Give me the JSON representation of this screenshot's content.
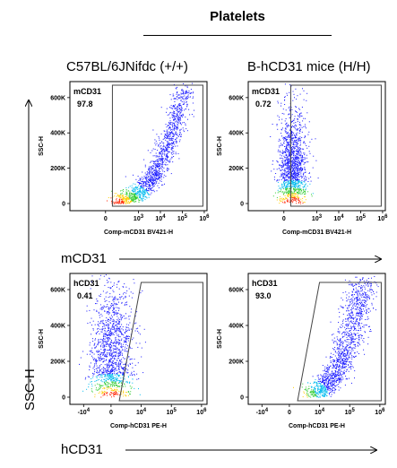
{
  "title": "Platelets",
  "columns": [
    "C57BL/6JNifdc (+/+)",
    "B-hCD31 mice (H/H)"
  ],
  "row_labels": [
    "mCD31",
    "hCD31"
  ],
  "y_axis_outer_label": "SSC-H",
  "chart_data": [
    {
      "type": "scatter",
      "panel": "mCD31 / C57BL/6JNifdc (+/+)",
      "gate_label": "mCD31",
      "gate_percent": "97.8",
      "xlabel": "Comp-mCD31 BV421-H",
      "ylabel": "SSC-H",
      "x_scale": "biexponential",
      "x_ticks": [
        "0",
        "10^3",
        "10^4",
        "10^5",
        "10^6"
      ],
      "y_ticks": [
        "0",
        "200K",
        "400K",
        "600K"
      ],
      "ylim": [
        0,
        650000
      ],
      "population": "positive",
      "gate_x_range": [
        "~10^3",
        "~10^6"
      ]
    },
    {
      "type": "scatter",
      "panel": "mCD31 / B-hCD31 mice (H/H)",
      "gate_label": "mCD31",
      "gate_percent": "0.72",
      "xlabel": "Comp-mCD31 BV421-H",
      "ylabel": "SSC-H",
      "x_scale": "biexponential",
      "x_ticks": [
        "0",
        "10^3",
        "10^4",
        "10^5",
        "10^6"
      ],
      "y_ticks": [
        "0",
        "200K",
        "400K",
        "600K"
      ],
      "ylim": [
        0,
        650000
      ],
      "population": "negative",
      "gate_x_range": [
        "~10^3",
        "~10^6"
      ]
    },
    {
      "type": "scatter",
      "panel": "hCD31 / C57BL/6JNifdc (+/+)",
      "gate_label": "hCD31",
      "gate_percent": "0.41",
      "xlabel": "Comp-hCD31 PE-H",
      "ylabel": "SSC-H",
      "x_scale": "biexponential",
      "x_ticks": [
        "-10^4",
        "0",
        "10^4",
        "10^5",
        "10^6"
      ],
      "y_ticks": [
        "0",
        "200K",
        "400K",
        "600K"
      ],
      "ylim": [
        0,
        650000
      ],
      "population": "negative",
      "gate_x_range": [
        "~10^3",
        "~10^6"
      ]
    },
    {
      "type": "scatter",
      "panel": "hCD31 / B-hCD31 mice (H/H)",
      "gate_label": "hCD31",
      "gate_percent": "93.0",
      "xlabel": "Comp-hCD31 PE-H",
      "ylabel": "SSC-H",
      "x_scale": "biexponential",
      "x_ticks": [
        "-10^4",
        "0",
        "10^4",
        "10^5",
        "10^6"
      ],
      "y_ticks": [
        "0",
        "200K",
        "400K",
        "600K"
      ],
      "ylim": [
        0,
        650000
      ],
      "population": "positive",
      "gate_x_range": [
        "~10^3",
        "~10^6"
      ]
    }
  ]
}
